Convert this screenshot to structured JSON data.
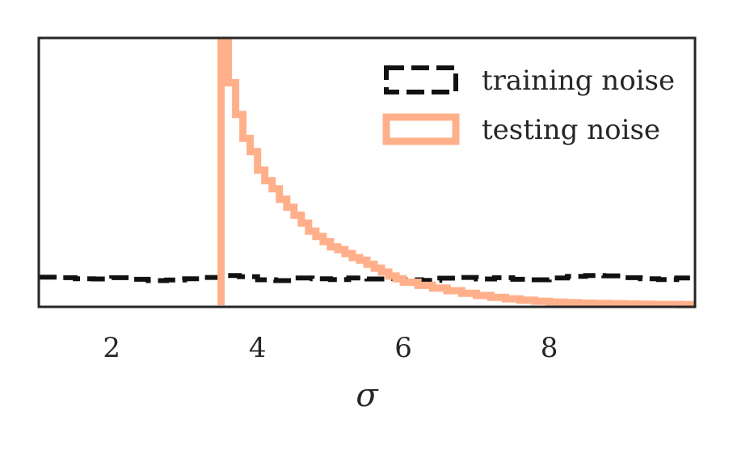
{
  "chart_data": {
    "type": "histogram",
    "xlabel": "σ",
    "ylabel": "",
    "xlim": [
      1.0,
      10.0
    ],
    "ylim": [
      0,
      1
    ],
    "x_ticks": [
      "2",
      "4",
      "6",
      "8"
    ],
    "x_tick_values": [
      2,
      4,
      6,
      8
    ],
    "y_ticks": [],
    "grid": false,
    "legend_position": "top-right",
    "series": [
      {
        "name": "training noise",
        "style": "dashed step",
        "color": "#111111",
        "bin_edges": [
          1.0,
          1.25,
          1.5,
          1.75,
          2.0,
          2.25,
          2.5,
          2.75,
          3.0,
          3.25,
          3.5,
          3.75,
          4.0,
          4.25,
          4.5,
          4.75,
          5.0,
          5.25,
          5.5,
          5.75,
          6.0,
          6.25,
          6.5,
          6.75,
          7.0,
          7.25,
          7.5,
          7.75,
          8.0,
          8.25,
          8.5,
          8.75,
          9.0,
          9.25,
          9.5,
          9.75,
          10.0
        ],
        "values": [
          0.106,
          0.104,
          0.1,
          0.099,
          0.104,
          0.098,
          0.093,
          0.095,
          0.1,
          0.105,
          0.112,
          0.108,
          0.096,
          0.093,
          0.103,
          0.1,
          0.097,
          0.103,
          0.099,
          0.101,
          0.096,
          0.094,
          0.102,
          0.105,
          0.099,
          0.104,
          0.098,
          0.096,
          0.103,
          0.109,
          0.112,
          0.111,
          0.104,
          0.1,
          0.097,
          0.103
        ]
      },
      {
        "name": "testing noise",
        "style": "solid step",
        "color": "#FFB08A",
        "bin_edges": [
          3.5,
          3.6,
          3.7,
          3.8,
          3.9,
          4.0,
          4.1,
          4.2,
          4.3,
          4.4,
          4.5,
          4.6,
          4.7,
          4.8,
          4.9,
          5.0,
          5.1,
          5.2,
          5.3,
          5.4,
          5.5,
          5.6,
          5.7,
          5.8,
          5.9,
          6.0,
          6.2,
          6.4,
          6.6,
          6.8,
          7.0,
          7.2,
          7.4,
          7.6,
          7.8,
          8.0,
          8.2,
          8.4,
          8.6,
          8.8,
          9.0,
          9.2,
          9.4,
          9.6,
          9.8,
          10.0
        ],
        "values": [
          1.0,
          0.84,
          0.72,
          0.63,
          0.58,
          0.51,
          0.47,
          0.44,
          0.4,
          0.37,
          0.34,
          0.31,
          0.28,
          0.26,
          0.24,
          0.22,
          0.21,
          0.195,
          0.18,
          0.17,
          0.155,
          0.14,
          0.125,
          0.11,
          0.1,
          0.087,
          0.075,
          0.065,
          0.055,
          0.045,
          0.037,
          0.03,
          0.024,
          0.019,
          0.015,
          0.012,
          0.01,
          0.008,
          0.007,
          0.006,
          0.005,
          0.004,
          0.003,
          0.003,
          0.002
        ]
      }
    ]
  }
}
